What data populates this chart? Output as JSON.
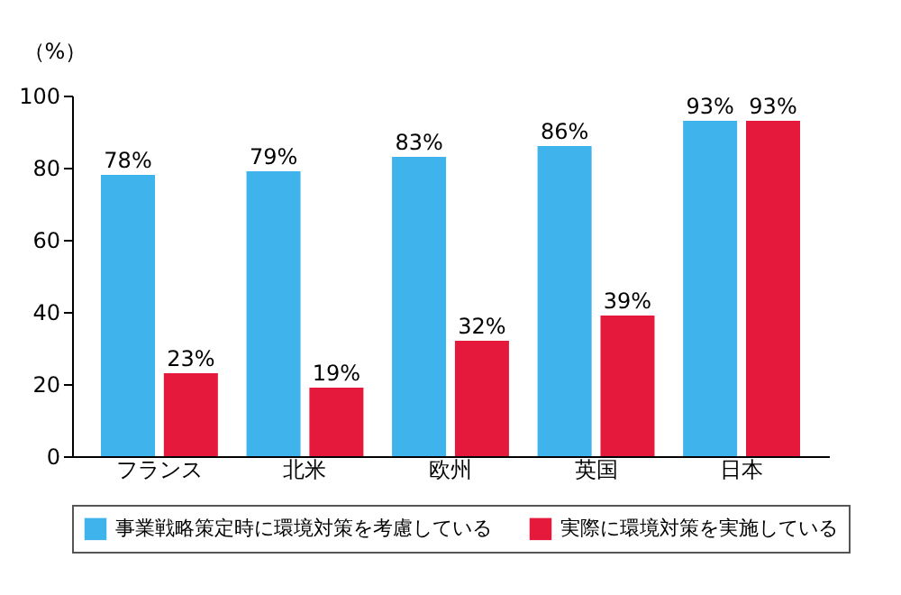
{
  "chart_data": {
    "type": "bar",
    "ylabel": "（%）",
    "categories": [
      "フランス",
      "北米",
      "欧州",
      "英国",
      "日本"
    ],
    "series": [
      {
        "name": "事業戦略策定時に環境対策を考慮している",
        "color": "#3fb4ec",
        "values": [
          78,
          79,
          83,
          86,
          93
        ],
        "value_labels": [
          "78%",
          "79%",
          "83%",
          "86%",
          "93%"
        ]
      },
      {
        "name": "実際に環境対策を実施している",
        "color": "#e4193c",
        "values": [
          23,
          19,
          32,
          39,
          93
        ],
        "value_labels": [
          "23%",
          "19%",
          "32%",
          "39%",
          "93%"
        ]
      }
    ],
    "ylim": [
      0,
      100
    ],
    "yticks": [
      0,
      20,
      40,
      60,
      80,
      100
    ],
    "grid": false,
    "legend": "bottom"
  }
}
